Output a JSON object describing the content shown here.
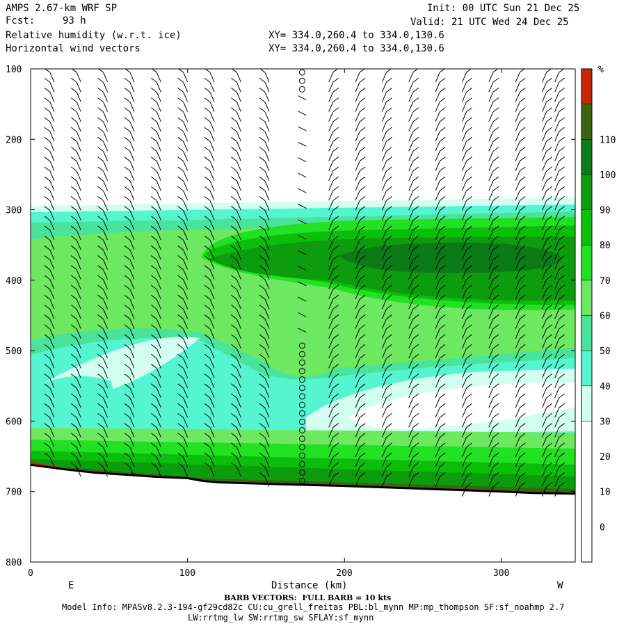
{
  "header": {
    "line1_left": "AMPS 2.67-km WRF SP",
    "line2_left_label": "Fcst:",
    "line2_left_value": "93 h",
    "line3_left": "Relative humidity (w.r.t. ice)",
    "line4_left": "Horizontal wind vectors",
    "line1_right": "Init: 00 UTC Sun 21 Dec 25",
    "line2_right": "Valid: 21 UTC Wed 24 Dec 25",
    "line3_mid": "XY= 334.0,260.4 to 334.0,130.6",
    "line4_mid": "XY= 334.0,260.4 to 334.0,130.6"
  },
  "footer": {
    "x_axis_label": "Distance (km)",
    "left_end_label": "E",
    "right_end_label": "W",
    "barb_note": "BARB VECTORS:  FULL BARB = 10 kts",
    "model_info_1": "Model Info: MPASv8.2.3-194-gf29cd82c CU:cu_grell_freitas PBL:bl_mynn MP:mp_thompson SF:sf_noahmp 2.7",
    "model_info_2": "LW:rrtmg_lw SW:rrtmg_sw SFLAY:sf_mynn"
  },
  "colors": {
    "white": "#ffffff",
    "c30": "#d2fff0",
    "c40": "#55f5d2",
    "c50": "#49e39b",
    "c60": "#6ee860",
    "c70": "#22e022",
    "c80": "#0cbe0c",
    "c90": "#0d9c0d",
    "c100": "#0b7b18",
    "c110": "#3e6312",
    "c120": "#c82800",
    "terrain": "#000000"
  },
  "chart_data": {
    "type": "cross-section",
    "xlabel": "Distance (km)",
    "ylabel": "",
    "xlim": [
      0,
      347
    ],
    "ylim": [
      800,
      100
    ],
    "x_ticks": [
      0,
      100,
      200,
      300
    ],
    "y_ticks": [
      100,
      200,
      300,
      400,
      500,
      600,
      700,
      800
    ],
    "colorbar": {
      "unit": "%",
      "ticks": [
        0,
        10,
        20,
        30,
        40,
        50,
        60,
        70,
        80,
        90,
        100,
        110
      ],
      "bands": [
        {
          "lo": -10,
          "hi": 30,
          "color": "#ffffff"
        },
        {
          "lo": 30,
          "hi": 40,
          "color": "#d2fff0"
        },
        {
          "lo": 40,
          "hi": 50,
          "color": "#55f5d2"
        },
        {
          "lo": 50,
          "hi": 60,
          "color": "#49e39b"
        },
        {
          "lo": 60,
          "hi": 70,
          "color": "#6ee860"
        },
        {
          "lo": 70,
          "hi": 80,
          "color": "#22e022"
        },
        {
          "lo": 80,
          "hi": 90,
          "color": "#0cbe0c"
        },
        {
          "lo": 90,
          "hi": 100,
          "color": "#0d9c0d"
        },
        {
          "lo": 100,
          "hi": 110,
          "color": "#0b7b18"
        },
        {
          "lo": 110,
          "hi": 120,
          "color": "#3e6312"
        },
        {
          "lo": 120,
          "hi": 130,
          "color": "#c82800"
        }
      ]
    },
    "terrain_surface": {
      "x": [
        0,
        10,
        20,
        40,
        60,
        80,
        100,
        110,
        120,
        150,
        200,
        250,
        300,
        320,
        347
      ],
      "p": [
        662,
        665,
        668,
        673,
        676,
        679,
        681,
        685,
        687,
        689,
        692,
        696,
        700,
        702,
        703
      ]
    },
    "barb_columns_x": [
      15,
      32,
      49,
      66,
      83,
      100,
      117,
      134,
      152,
      173,
      190,
      207,
      224,
      241,
      258,
      275,
      292,
      309,
      326,
      334
    ]
  }
}
